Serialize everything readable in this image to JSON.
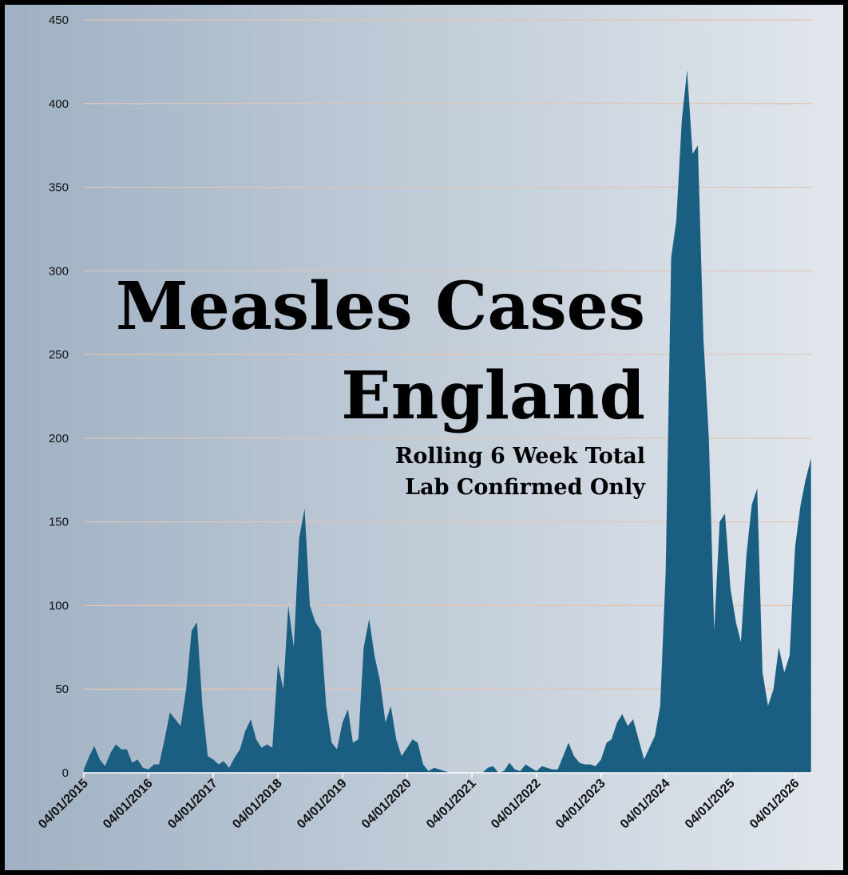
{
  "chart_data": {
    "type": "area",
    "title": "Measles Cases",
    "title_line2": "England",
    "subtitle": "Rolling 6 Week Total",
    "subtitle_line2": "Lab Confirmed Only",
    "color": "#1a5f82",
    "grid": true,
    "ylim": [
      0,
      450
    ],
    "yticks": [
      0,
      50,
      100,
      150,
      200,
      250,
      300,
      350,
      400,
      450
    ],
    "xlim": [
      "04/01/2015",
      "10/04/2026"
    ],
    "xticks": [
      "04/01/2015",
      "04/01/2016",
      "04/01/2017",
      "04/01/2018",
      "04/01/2019",
      "04/01/2020",
      "04/01/2021",
      "04/01/2022",
      "04/01/2023",
      "04/01/2024",
      "04/01/2025",
      "04/01/2026"
    ],
    "x": [
      "04/01/2015",
      "04/02/2015",
      "04/03/2015",
      "04/04/2015",
      "04/05/2015",
      "04/06/2015",
      "04/07/2015",
      "04/08/2015",
      "04/09/2015",
      "04/10/2015",
      "04/11/2015",
      "04/12/2015",
      "04/01/2016",
      "04/02/2016",
      "04/03/2016",
      "04/04/2016",
      "04/05/2016",
      "04/06/2016",
      "04/07/2016",
      "04/08/2016",
      "04/09/2016",
      "04/10/2016",
      "04/11/2016",
      "04/12/2016",
      "04/01/2017",
      "04/02/2017",
      "04/03/2017",
      "04/04/2017",
      "04/05/2017",
      "04/06/2017",
      "04/07/2017",
      "04/08/2017",
      "04/09/2017",
      "04/10/2017",
      "04/11/2017",
      "04/12/2017",
      "04/01/2018",
      "04/02/2018",
      "04/03/2018",
      "04/04/2018",
      "04/05/2018",
      "04/06/2018",
      "04/07/2018",
      "04/08/2018",
      "04/09/2018",
      "04/10/2018",
      "04/11/2018",
      "04/12/2018",
      "04/01/2019",
      "04/02/2019",
      "04/03/2019",
      "04/04/2019",
      "04/05/2019",
      "04/06/2019",
      "04/07/2019",
      "04/08/2019",
      "04/09/2019",
      "04/10/2019",
      "04/11/2019",
      "04/12/2019",
      "04/01/2020",
      "04/02/2020",
      "04/03/2020",
      "04/04/2020",
      "04/05/2020",
      "04/06/2020",
      "04/07/2020",
      "04/08/2020",
      "04/09/2020",
      "04/10/2020",
      "04/11/2020",
      "04/12/2020",
      "04/01/2021",
      "04/02/2021",
      "04/03/2021",
      "04/04/2021",
      "04/05/2021",
      "04/06/2021",
      "04/07/2021",
      "04/08/2021",
      "04/09/2021",
      "04/10/2021",
      "04/11/2021",
      "04/12/2021",
      "04/01/2022",
      "04/02/2022",
      "04/03/2022",
      "04/04/2022",
      "04/05/2022",
      "04/06/2022",
      "04/07/2022",
      "04/08/2022",
      "04/09/2022",
      "04/10/2022",
      "04/11/2022",
      "04/12/2022",
      "04/01/2023",
      "04/02/2023",
      "04/03/2023",
      "04/04/2023",
      "04/05/2023",
      "04/06/2023",
      "04/07/2023",
      "04/08/2023",
      "04/09/2023",
      "04/10/2023",
      "04/11/2023",
      "04/12/2023",
      "04/01/2024",
      "04/02/2024",
      "04/03/2024",
      "04/04/2024",
      "04/05/2024",
      "04/06/2024",
      "04/07/2024",
      "04/08/2024",
      "04/09/2024",
      "04/10/2024",
      "04/11/2024",
      "04/12/2024",
      "04/01/2025",
      "04/02/2025",
      "04/03/2025",
      "04/04/2025",
      "04/05/2025",
      "04/06/2025",
      "04/07/2025",
      "04/08/2025",
      "04/09/2025",
      "04/10/2025",
      "04/11/2025",
      "04/12/2025",
      "04/01/2026",
      "04/02/2026",
      "04/03/2026",
      "04/04/2026"
    ],
    "values": [
      2,
      10,
      16,
      8,
      4,
      12,
      17,
      14,
      14,
      6,
      8,
      3,
      2,
      5,
      5,
      20,
      36,
      32,
      28,
      50,
      85,
      90,
      40,
      10,
      8,
      5,
      7,
      3,
      9,
      14,
      25,
      32,
      20,
      15,
      17,
      15,
      65,
      50,
      100,
      75,
      140,
      158,
      100,
      90,
      85,
      40,
      18,
      14,
      30,
      38,
      18,
      20,
      75,
      92,
      70,
      55,
      30,
      40,
      20,
      10,
      15,
      20,
      18,
      5,
      1,
      3,
      2,
      1,
      0,
      0,
      0,
      0,
      0,
      0,
      0,
      3,
      4,
      0,
      1,
      6,
      2,
      1,
      5,
      3,
      1,
      4,
      3,
      2,
      2,
      10,
      18,
      10,
      6,
      5,
      5,
      4,
      8,
      18,
      20,
      30,
      35,
      28,
      32,
      20,
      8,
      15,
      22,
      40,
      120,
      308,
      330,
      390,
      420,
      370,
      375,
      260,
      200,
      85,
      150,
      155,
      110,
      90,
      78,
      130,
      160,
      170,
      60,
      40,
      50,
      75,
      60,
      70,
      135,
      160,
      175,
      188
    ]
  }
}
